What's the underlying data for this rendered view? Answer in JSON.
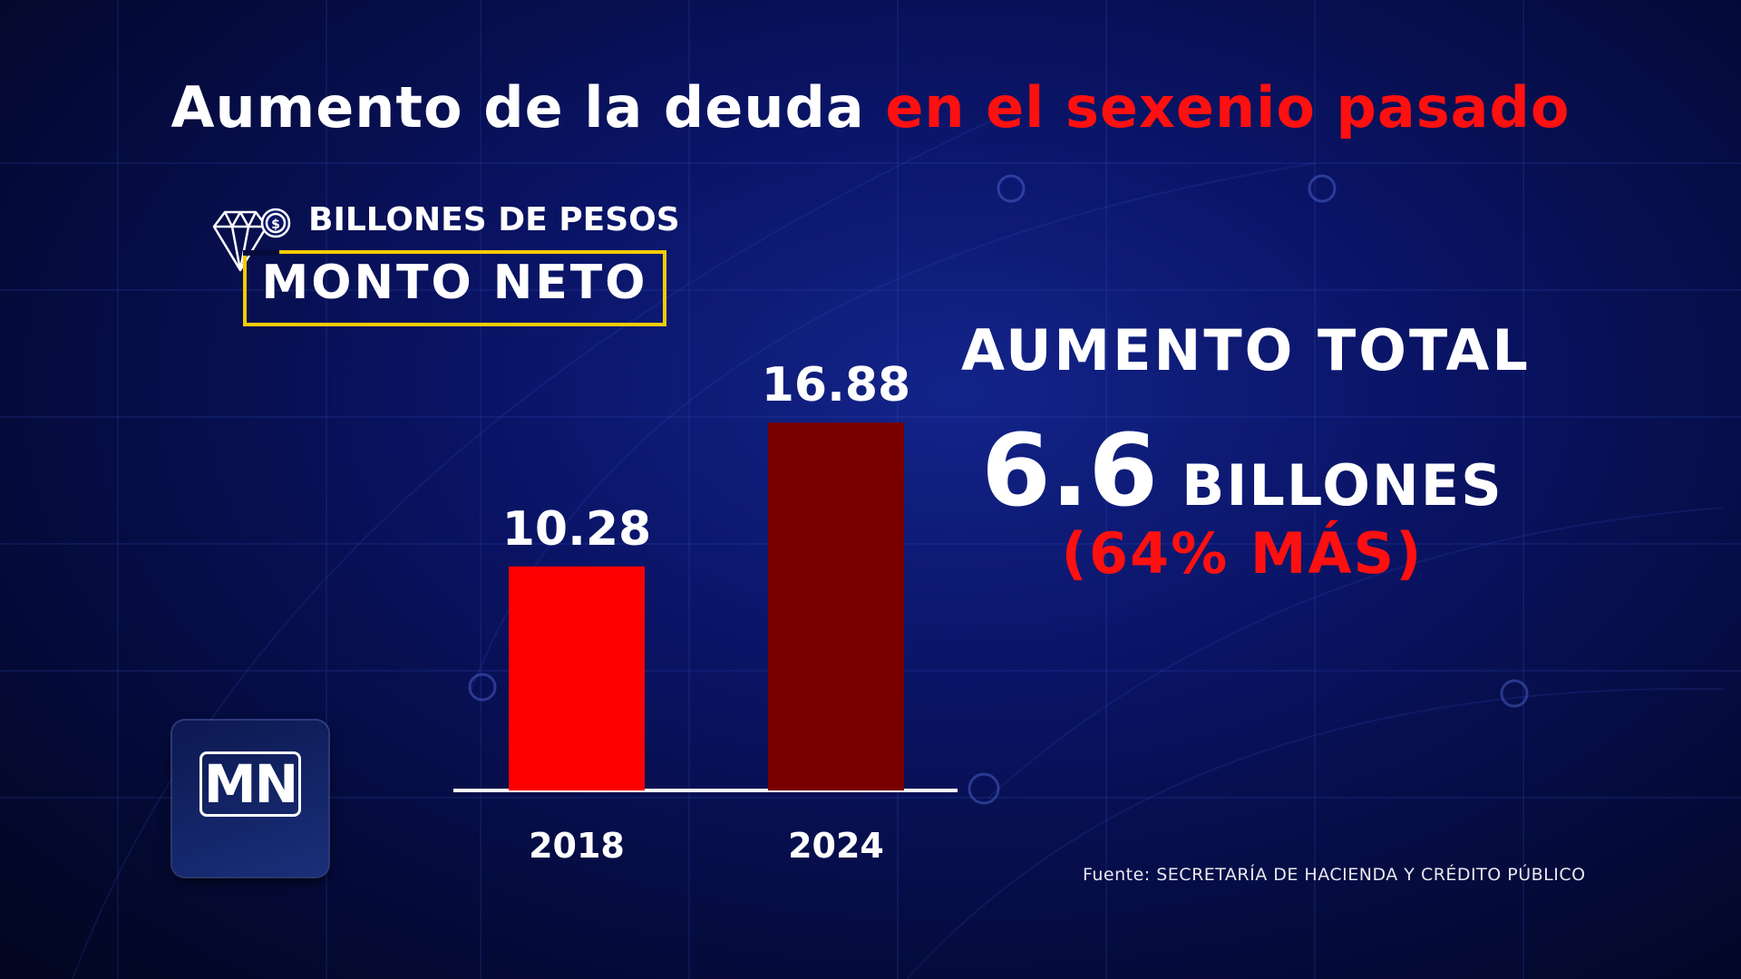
{
  "title": {
    "part1": "Aumento de la deuda",
    "part2": "en el sexenio pasado"
  },
  "unit_label": "BILLONES DE PESOS",
  "subtitle_box": "MONTO NETO",
  "icon": "diamond-dollar-icon",
  "summary": {
    "title": "AUMENTO TOTAL",
    "value": "6.6",
    "unit": "BILLONES",
    "percent": "(64% MÁS)"
  },
  "logo": {
    "text": "MN"
  },
  "source": "Fuente: SECRETARÍA DE HACIENDA Y CRÉDITO PÚBLICO",
  "colors": {
    "accent_red": "#ff1010",
    "bar_2018": "#ff0000",
    "bar_2024": "#7a0000",
    "box_border": "#f5cc00",
    "background": "#0a1466"
  },
  "chart_data": {
    "type": "bar",
    "categories": [
      "2018",
      "2024"
    ],
    "values": [
      10.28,
      16.88
    ],
    "value_labels": [
      "10.28",
      "16.88"
    ],
    "title": "",
    "xlabel": "",
    "ylabel": "",
    "ylim": [
      0,
      18.3
    ],
    "grid": false
  }
}
